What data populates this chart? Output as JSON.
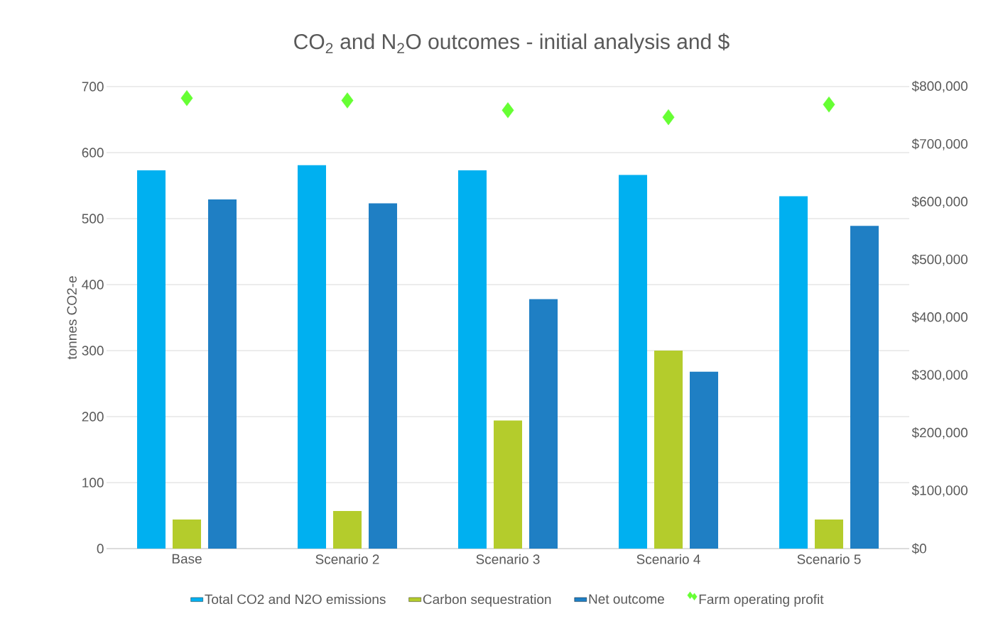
{
  "chart_data": {
    "type": "bar",
    "title": "CO$_{2}$ and N$_{2}$O outcomes - initial analysis and $",
    "ylabel": "tonnes CO2-e",
    "categories": [
      "Base",
      "Scenario 2",
      "Scenario 3",
      "Scenario 4",
      "Scenario 5"
    ],
    "series": [
      {
        "name": "Total CO2 and N2O emissions",
        "color": "#00b0f0",
        "values": [
          573,
          581,
          573,
          566,
          534
        ]
      },
      {
        "name": "Carbon sequestration",
        "color": "#b4cc2c",
        "values": [
          44,
          57,
          194,
          300,
          44
        ]
      },
      {
        "name": "Net outcome",
        "color": "#1f7fc4",
        "values": [
          529,
          523,
          378,
          268,
          489
        ]
      },
      {
        "name": "Farm operating profit",
        "type": "scatter",
        "axis": "y2",
        "marker": "diamond",
        "color": "#66ff33",
        "values": [
          780000,
          776000,
          759000,
          747000,
          769000
        ]
      }
    ],
    "ylim": [
      0,
      700
    ],
    "yticks": [
      0,
      100,
      200,
      300,
      400,
      500,
      600,
      700
    ],
    "y2lim": [
      0,
      800000
    ],
    "y2ticks": [
      {
        "value": 0,
        "label": "$0"
      },
      {
        "value": 100000,
        "label": "$100,000"
      },
      {
        "value": 200000,
        "label": "$200,000"
      },
      {
        "value": 300000,
        "label": "$300,000"
      },
      {
        "value": 400000,
        "label": "$400,000"
      },
      {
        "value": 500000,
        "label": "$500,000"
      },
      {
        "value": 600000,
        "label": "$600,000"
      },
      {
        "value": 700000,
        "label": "$700,000"
      },
      {
        "value": 800000,
        "label": "$800,000"
      }
    ],
    "grid": "y",
    "legend": "bottom"
  }
}
